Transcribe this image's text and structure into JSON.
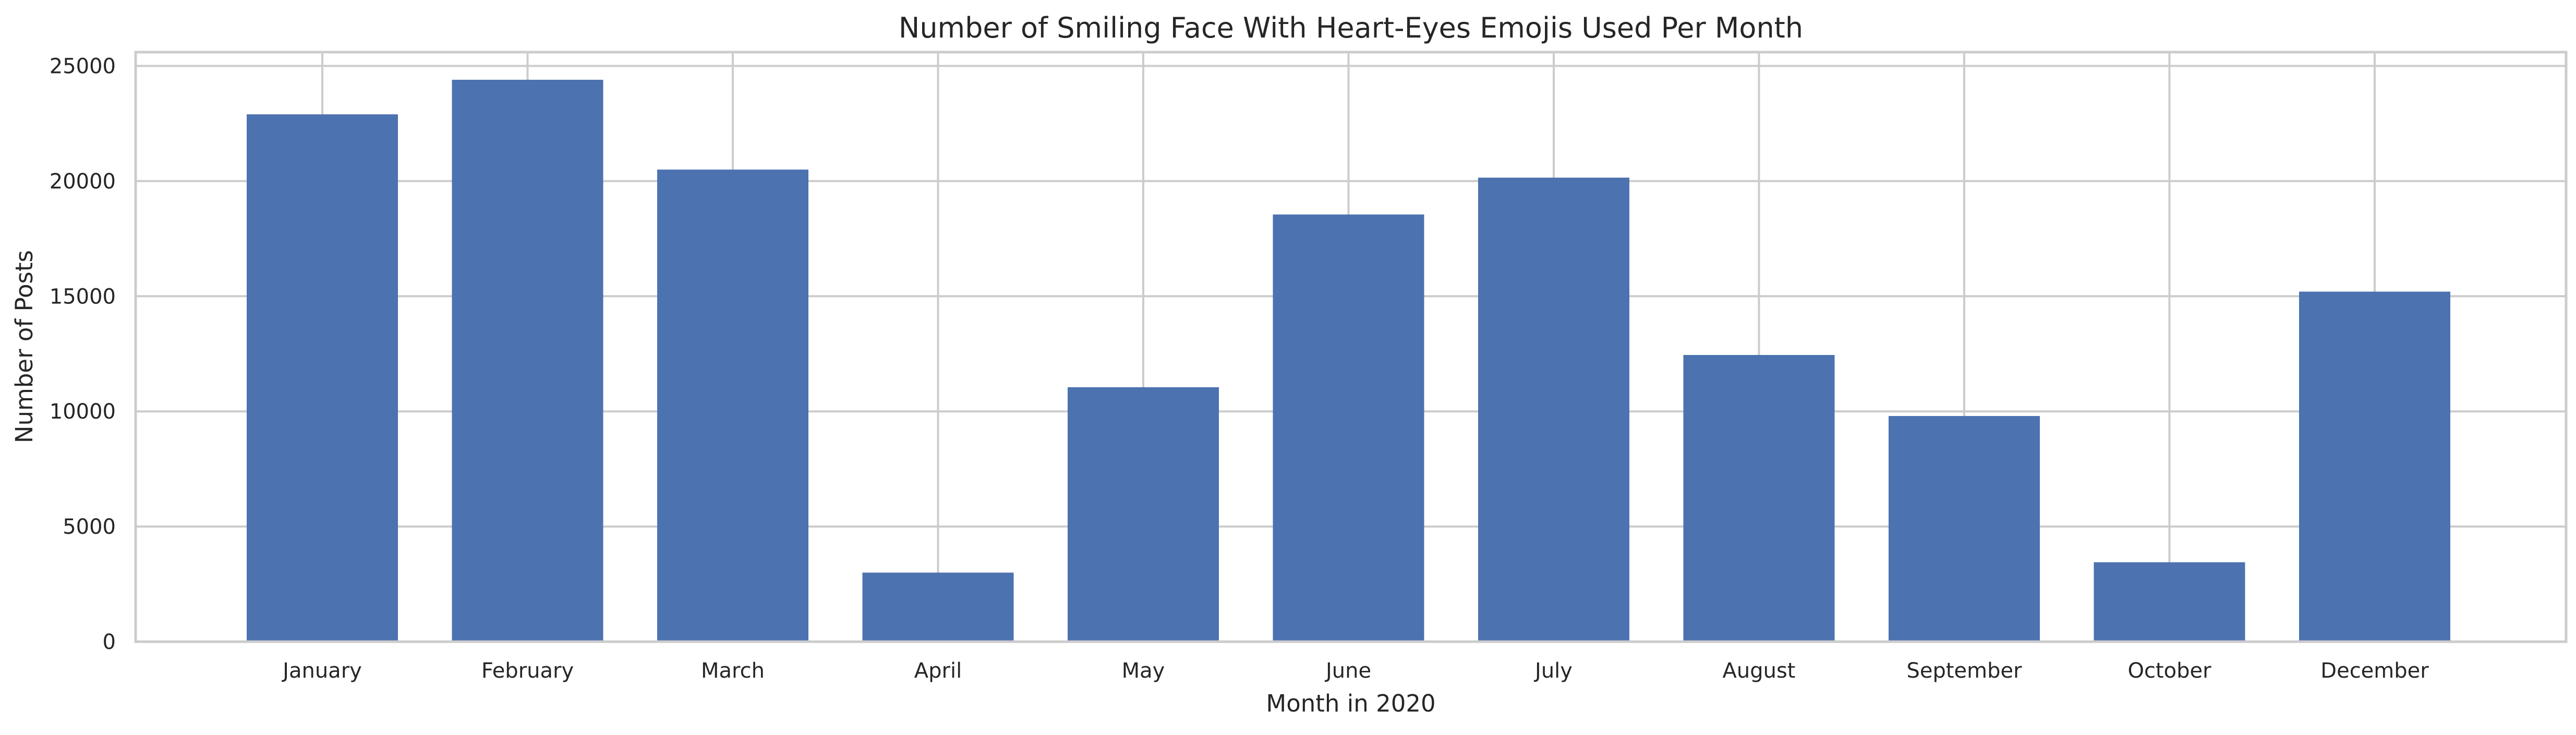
{
  "chart_data": {
    "type": "bar",
    "title": "Number of Smiling Face With Heart-Eyes Emojis Used Per Month",
    "xlabel": "Month in 2020",
    "ylabel": "Number of Posts",
    "categories": [
      "January",
      "February",
      "March",
      "April",
      "May",
      "June",
      "July",
      "August",
      "September",
      "October",
      "December"
    ],
    "values": [
      22900,
      24400,
      20500,
      3000,
      11050,
      18550,
      20150,
      12450,
      9800,
      3450,
      15200
    ],
    "ylim": [
      0,
      25600
    ],
    "yticks": [
      0,
      5000,
      10000,
      15000,
      20000,
      25000
    ],
    "grid": true,
    "bar_color": "#4c72b0",
    "grid_color": "#cccccc"
  }
}
